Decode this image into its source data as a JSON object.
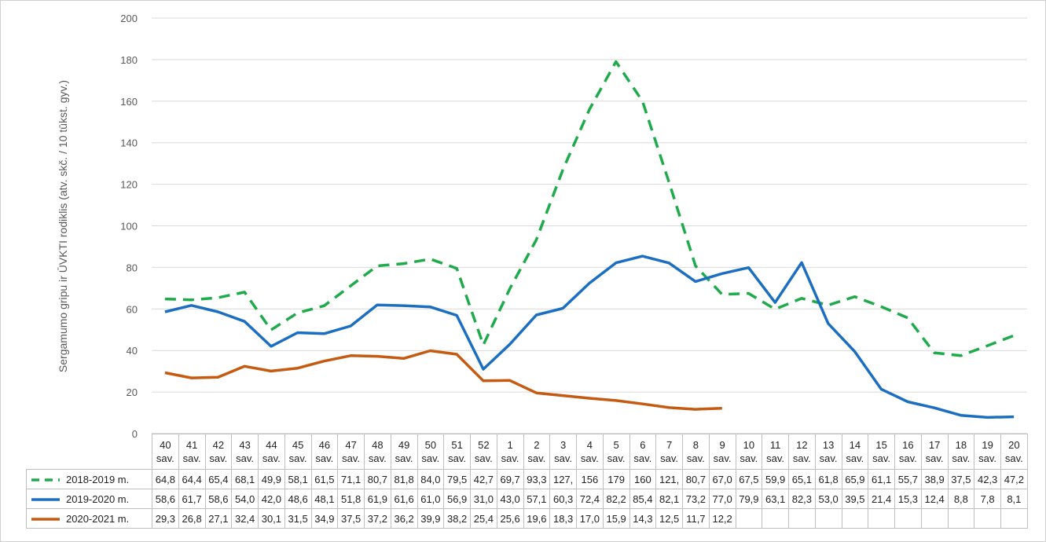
{
  "chart_data": {
    "type": "line",
    "y_label": "Sergamumo gripu ir ŪVKTI rodiklis (atv. skč. / 10 tūkst. gyv.)",
    "categories": [
      "40\nsav.",
      "41\nsav.",
      "42\nsav.",
      "43\nsav.",
      "44\nsav.",
      "45\nsav.",
      "46\nsav.",
      "47\nsav.",
      "48\nsav.",
      "49\nsav.",
      "50\nsav.",
      "51\nsav.",
      "52\nsav.",
      "1\nsav.",
      "2\nsav.",
      "3\nsav.",
      "4\nsav.",
      "5\nsav.",
      "6\nsav.",
      "7\nsav.",
      "8\nsav.",
      "9\nsav.",
      "10\nsav.",
      "11\nsav.",
      "12\nsav.",
      "13\nsav.",
      "14\nsav.",
      "15\nsav.",
      "16\nsav.",
      "17\nsav.",
      "18\nsav.",
      "19\nsav.",
      "20\nsav."
    ],
    "ylim": [
      0,
      200
    ],
    "yticks": [
      0,
      20,
      40,
      60,
      80,
      100,
      120,
      140,
      160,
      180,
      200
    ],
    "grid": true,
    "series": [
      {
        "name": "2018-2019 m.",
        "color": "#1faa4b",
        "dashed": true,
        "values": [
          64.8,
          64.4,
          65.4,
          68.1,
          49.9,
          58.1,
          61.5,
          71.1,
          80.7,
          81.8,
          84.0,
          79.5,
          42.7,
          69.7,
          93.3,
          127,
          156,
          179,
          160,
          121,
          80.7,
          67.0,
          67.5,
          59.9,
          65.1,
          61.8,
          65.9,
          61.1,
          55.7,
          38.9,
          37.5,
          42.3,
          47.2
        ],
        "value_labels": [
          "64,8",
          "64,4",
          "65,4",
          "68,1",
          "49,9",
          "58,1",
          "61,5",
          "71,1",
          "80,7",
          "81,8",
          "84,0",
          "79,5",
          "42,7",
          "69,7",
          "93,3",
          "127,",
          "156",
          "179",
          "160",
          "121,",
          "80,7",
          "67,0",
          "67,5",
          "59,9",
          "65,1",
          "61,8",
          "65,9",
          "61,1",
          "55,7",
          "38,9",
          "37,5",
          "42,3",
          "47,2"
        ]
      },
      {
        "name": "2019-2020 m.",
        "color": "#1c6fc0",
        "dashed": false,
        "values": [
          58.6,
          61.7,
          58.6,
          54.0,
          42.0,
          48.6,
          48.1,
          51.8,
          61.9,
          61.6,
          61.0,
          56.9,
          31.0,
          43.0,
          57.1,
          60.3,
          72.4,
          82.2,
          85.4,
          82.1,
          73.2,
          77.0,
          79.9,
          63.1,
          82.3,
          53.0,
          39.5,
          21.4,
          15.3,
          12.4,
          8.8,
          7.8,
          8.1
        ],
        "value_labels": [
          "58,6",
          "61,7",
          "58,6",
          "54,0",
          "42,0",
          "48,6",
          "48,1",
          "51,8",
          "61,9",
          "61,6",
          "61,0",
          "56,9",
          "31,0",
          "43,0",
          "57,1",
          "60,3",
          "72,4",
          "82,2",
          "85,4",
          "82,1",
          "73,2",
          "77,0",
          "79,9",
          "63,1",
          "82,3",
          "53,0",
          "39,5",
          "21,4",
          "15,3",
          "12,4",
          "8,8",
          "7,8",
          "8,1"
        ]
      },
      {
        "name": "2020-2021 m.",
        "color": "#c55a11",
        "dashed": false,
        "values": [
          29.3,
          26.8,
          27.1,
          32.4,
          30.1,
          31.5,
          34.9,
          37.5,
          37.2,
          36.2,
          39.9,
          38.2,
          25.4,
          25.6,
          19.6,
          18.3,
          17.0,
          15.9,
          14.3,
          12.5,
          11.7,
          12.2,
          null,
          null,
          null,
          null,
          null,
          null,
          null,
          null,
          null,
          null,
          null
        ],
        "value_labels": [
          "29,3",
          "26,8",
          "27,1",
          "32,4",
          "30,1",
          "31,5",
          "34,9",
          "37,5",
          "37,2",
          "36,2",
          "39,9",
          "38,2",
          "25,4",
          "25,6",
          "19,6",
          "18,3",
          "17,0",
          "15,9",
          "14,3",
          "12,5",
          "11,7",
          "12,2",
          null,
          null,
          null,
          null,
          null,
          null,
          null,
          null,
          null,
          null,
          null
        ]
      }
    ]
  }
}
